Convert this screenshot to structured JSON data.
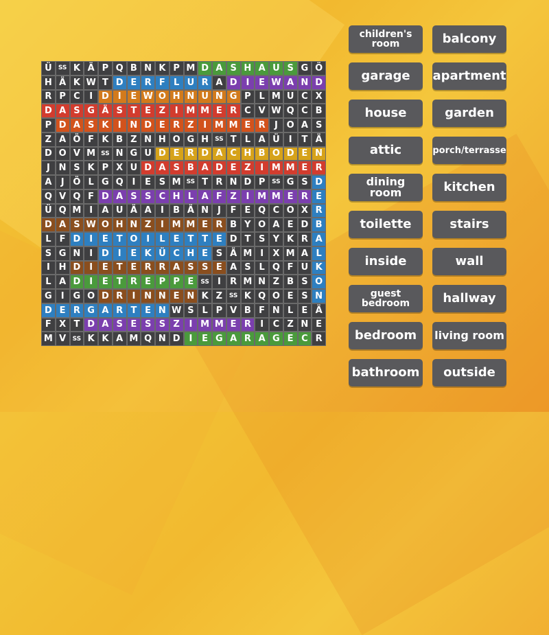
{
  "grid_rows": [
    "ÜSSKÄPQBNKPMDASHAUSGÖ",
    "HÄKWTDERFLURADIEWAND",
    "RPCIDIEWOHNUNGPLMUCX",
    "DASGÄSTEZIMMERCVWQCB",
    "PDASKINDERZIMMERJOAS",
    "ZAÖFKBZNHOGHSSTLAÜITÄ",
    "DOVMSSNGUDERDACHBODEN",
    "JNSKPXUDASBADEZIMMER",
    "AJÖLGQIESMSSTRNDPSSGSD",
    "QVQFDASSCHLAFZIMMERE",
    "ÜQMIAUÄAIBÄNJFEQCOXR",
    "DASWOHNZIMMERBYOAEDB",
    "LFDIETOILETTEDTSYKRA",
    "SGNIDIEKÜCHESÄMIXMAL",
    "IHDIETERRASSEASLQFUK",
    "LADIETREPPESSIRMNZBSO",
    "GIGODRINNENKZSSKQOESN",
    "DERGARTENWSLPVBFNLEÄ",
    "FXTDASESSZIMMERICZNE",
    "MVSSKKAMQNDIEGARAGECR"
  ],
  "grid_cells": [
    [
      "Ü",
      "SS",
      "K",
      "Ä",
      "P",
      "Q",
      "B",
      "N",
      "K",
      "P",
      "M",
      "D",
      "A",
      "S",
      "H",
      "A",
      "U",
      "S",
      "G",
      "Ö"
    ],
    [
      "H",
      "Ä",
      "K",
      "W",
      "T",
      "D",
      "E",
      "R",
      "F",
      "L",
      "U",
      "R",
      "A",
      "D",
      "I",
      "E",
      "W",
      "A",
      "N",
      "D"
    ],
    [
      "R",
      "P",
      "C",
      "I",
      "D",
      "I",
      "E",
      "W",
      "O",
      "H",
      "N",
      "U",
      "N",
      "G",
      "P",
      "L",
      "M",
      "U",
      "C",
      "X"
    ],
    [
      "D",
      "A",
      "S",
      "G",
      "Ä",
      "S",
      "T",
      "E",
      "Z",
      "I",
      "M",
      "M",
      "E",
      "R",
      "C",
      "V",
      "W",
      "Q",
      "C",
      "B"
    ],
    [
      "P",
      "D",
      "A",
      "S",
      "K",
      "I",
      "N",
      "D",
      "E",
      "R",
      "Z",
      "I",
      "M",
      "M",
      "E",
      "R",
      "J",
      "O",
      "A",
      "S"
    ],
    [
      "Z",
      "A",
      "Ö",
      "F",
      "K",
      "B",
      "Z",
      "N",
      "H",
      "O",
      "G",
      "H",
      "SS",
      "T",
      "L",
      "A",
      "Ü",
      "I",
      "T",
      "Ä"
    ],
    [
      "D",
      "O",
      "V",
      "M",
      "SS",
      "N",
      "G",
      "U",
      "D",
      "E",
      "R",
      "D",
      "A",
      "C",
      "H",
      "B",
      "O",
      "D",
      "E",
      "N"
    ],
    [
      "J",
      "N",
      "S",
      "K",
      "P",
      "X",
      "U",
      "D",
      "A",
      "S",
      "B",
      "A",
      "D",
      "E",
      "Z",
      "I",
      "M",
      "M",
      "E",
      "R"
    ],
    [
      "A",
      "J",
      "Ö",
      "L",
      "G",
      "Q",
      "I",
      "E",
      "S",
      "M",
      "SS",
      "T",
      "R",
      "N",
      "D",
      "P",
      "SS",
      "G",
      "S",
      "D"
    ],
    [
      "Q",
      "V",
      "Q",
      "F",
      "D",
      "A",
      "S",
      "S",
      "C",
      "H",
      "L",
      "A",
      "F",
      "Z",
      "I",
      "M",
      "M",
      "E",
      "R",
      "E"
    ],
    [
      "Ü",
      "Q",
      "M",
      "I",
      "A",
      "U",
      "Ä",
      "A",
      "I",
      "B",
      "Ä",
      "N",
      "J",
      "F",
      "E",
      "Q",
      "C",
      "O",
      "X",
      "R"
    ],
    [
      "D",
      "A",
      "S",
      "W",
      "O",
      "H",
      "N",
      "Z",
      "I",
      "M",
      "M",
      "E",
      "R",
      "B",
      "Y",
      "O",
      "A",
      "E",
      "D",
      "B"
    ],
    [
      "L",
      "F",
      "D",
      "I",
      "E",
      "T",
      "O",
      "I",
      "L",
      "E",
      "T",
      "T",
      "E",
      "D",
      "T",
      "S",
      "Y",
      "K",
      "R",
      "A"
    ],
    [
      "S",
      "G",
      "N",
      "I",
      "D",
      "I",
      "E",
      "K",
      "Ü",
      "C",
      "H",
      "E",
      "S",
      "Ä",
      "M",
      "I",
      "X",
      "M",
      "A",
      "L"
    ],
    [
      "I",
      "H",
      "D",
      "I",
      "E",
      "T",
      "E",
      "R",
      "R",
      "A",
      "S",
      "S",
      "E",
      "A",
      "S",
      "L",
      "Q",
      "F",
      "U",
      "K"
    ],
    [
      "L",
      "A",
      "D",
      "I",
      "E",
      "T",
      "R",
      "E",
      "P",
      "P",
      "E",
      "SS",
      "I",
      "R",
      "M",
      "N",
      "Z",
      "B",
      "S",
      "O"
    ],
    [
      "G",
      "I",
      "G",
      "O",
      "D",
      "R",
      "I",
      "N",
      "N",
      "E",
      "N",
      "K",
      "Z",
      "SS",
      "K",
      "Q",
      "O",
      "E",
      "S",
      "N"
    ],
    [
      "D",
      "E",
      "R",
      "G",
      "A",
      "R",
      "T",
      "E",
      "N",
      "W",
      "S",
      "L",
      "P",
      "V",
      "B",
      "F",
      "N",
      "L",
      "E",
      "Ä"
    ],
    [
      "F",
      "X",
      "T",
      "D",
      "A",
      "S",
      "E",
      "S",
      "S",
      "Z",
      "I",
      "M",
      "M",
      "E",
      "R",
      "I",
      "C",
      "Z",
      "N",
      "E"
    ],
    [
      "M",
      "V",
      "SS",
      "K",
      "K",
      "A",
      "M",
      "Q",
      "N",
      "D",
      "I",
      "E",
      "G",
      "A",
      "R",
      "A",
      "G",
      "E",
      "C",
      "R"
    ]
  ],
  "found_words": [
    {
      "word": "DASHAUS",
      "row": 0,
      "col": 11,
      "dir": "h",
      "len": 7,
      "color": "#4a9a3c"
    },
    {
      "word": "DERFLUR",
      "row": 1,
      "col": 5,
      "dir": "h",
      "len": 7,
      "color": "#2e7fc0"
    },
    {
      "word": "DIEWAND",
      "row": 1,
      "col": 13,
      "dir": "h",
      "len": 7,
      "color": "#7b3fae"
    },
    {
      "word": "DIEWOHNUNG",
      "row": 2,
      "col": 4,
      "dir": "h",
      "len": 10,
      "color": "#d27a1c"
    },
    {
      "word": "DASGÄSTEZIMMER",
      "row": 3,
      "col": 0,
      "dir": "h",
      "len": 14,
      "color": "#d23c2e"
    },
    {
      "word": "DASKINDERZIMMER",
      "row": 4,
      "col": 1,
      "dir": "h",
      "len": 15,
      "color": "#d2521c"
    },
    {
      "word": "DERDACHBODEN",
      "row": 6,
      "col": 8,
      "dir": "h",
      "len": 12,
      "color": "#d6a21a"
    },
    {
      "word": "DASBADEZIMMER",
      "row": 7,
      "col": 7,
      "dir": "h",
      "len": 13,
      "color": "#d23c2e"
    },
    {
      "word": "DERBALKON",
      "row": 8,
      "col": 19,
      "dir": "v",
      "len": 9,
      "color": "#2e7fc0"
    },
    {
      "word": "DASSCHLAFZIMMER",
      "row": 9,
      "col": 4,
      "dir": "h",
      "len": 15,
      "color": "#7b3fae"
    },
    {
      "word": "DASWOHNZIMMER",
      "row": 11,
      "col": 0,
      "dir": "h",
      "len": 13,
      "color": "#8a4e1e"
    },
    {
      "word": "DIETOILETTE",
      "row": 12,
      "col": 2,
      "dir": "h",
      "len": 11,
      "color": "#2e7fc0"
    },
    {
      "word": "DIEKÜCHE",
      "row": 13,
      "col": 4,
      "dir": "h",
      "len": 8,
      "color": "#2e7fc0"
    },
    {
      "word": "DIETERRASSE",
      "row": 14,
      "col": 2,
      "dir": "h",
      "len": 11,
      "color": "#8a4e1e"
    },
    {
      "word": "DIETREPPE",
      "row": 15,
      "col": 2,
      "dir": "h",
      "len": 9,
      "color": "#4a9a3c"
    },
    {
      "word": "DRINNEN",
      "row": 16,
      "col": 4,
      "dir": "h",
      "len": 7,
      "color": "#8a4e1e"
    },
    {
      "word": "DERGARTEN",
      "row": 17,
      "col": 0,
      "dir": "h",
      "len": 9,
      "color": "#2e7fc0"
    },
    {
      "word": "DASESSZIMMER",
      "row": 18,
      "col": 3,
      "dir": "h",
      "len": 12,
      "color": "#7b3fae"
    },
    {
      "word": "DIEGARAGE",
      "row": 19,
      "col": 10,
      "dir": "h",
      "len": 9,
      "color": "#4a9a3c"
    }
  ],
  "words": [
    {
      "label": "children's room",
      "col": 1,
      "row": 0
    },
    {
      "label": "balcony",
      "col": 2,
      "row": 0
    },
    {
      "label": "garage",
      "col": 1,
      "row": 1
    },
    {
      "label": "apartment",
      "col": 2,
      "row": 1
    },
    {
      "label": "house",
      "col": 1,
      "row": 2
    },
    {
      "label": "garden",
      "col": 2,
      "row": 2
    },
    {
      "label": "attic",
      "col": 1,
      "row": 3
    },
    {
      "label": "porch/terrasse",
      "col": 2,
      "row": 3
    },
    {
      "label": "dining room",
      "col": 1,
      "row": 4
    },
    {
      "label": "kitchen",
      "col": 2,
      "row": 4
    },
    {
      "label": "toilette",
      "col": 1,
      "row": 5
    },
    {
      "label": "stairs",
      "col": 2,
      "row": 5
    },
    {
      "label": "inside",
      "col": 1,
      "row": 6
    },
    {
      "label": "wall",
      "col": 2,
      "row": 6
    },
    {
      "label": "guest bedroom",
      "col": 1,
      "row": 7
    },
    {
      "label": "hallway",
      "col": 2,
      "row": 7
    },
    {
      "label": "bedroom",
      "col": 1,
      "row": 8
    },
    {
      "label": "living room",
      "col": 2,
      "row": 8
    },
    {
      "label": "bathroom",
      "col": 1,
      "row": 9
    },
    {
      "label": "outside",
      "col": 2,
      "row": 9
    }
  ],
  "colors": {
    "background": "#f2be33",
    "cell_default": "#3f3f41",
    "button": "#59595c"
  }
}
